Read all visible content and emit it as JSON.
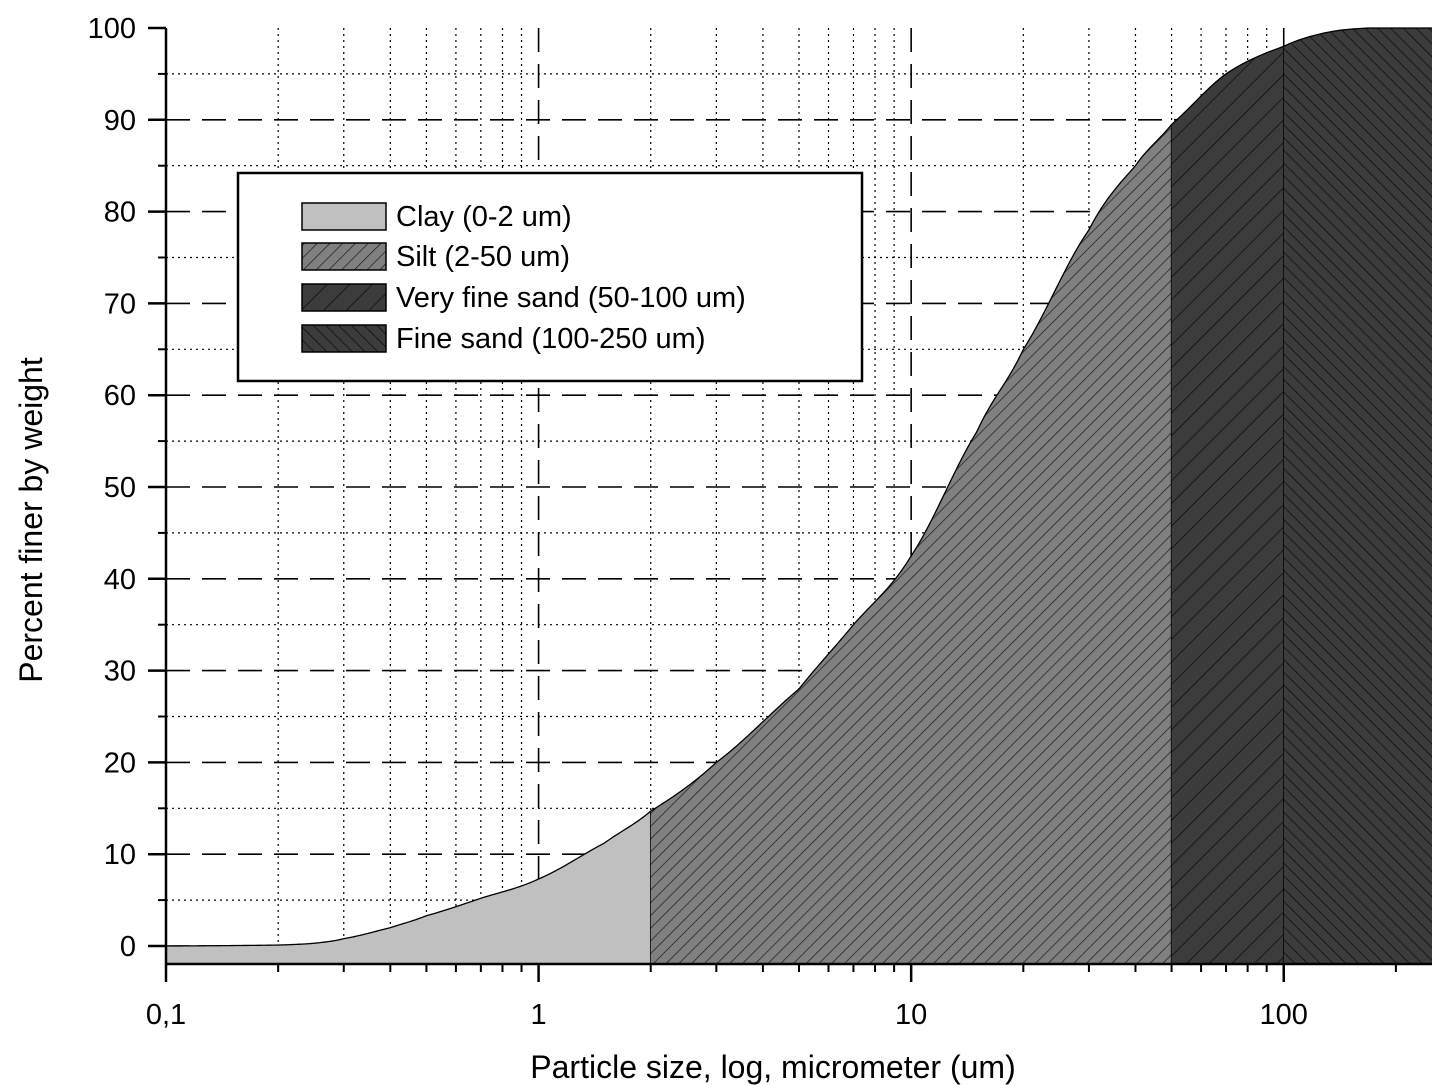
{
  "chart_data": {
    "type": "area",
    "xscale": "log",
    "xlabel": "Particle size, log, micrometer (um)",
    "ylabel": "Percent finer by weight",
    "xlim": [
      0.1,
      250
    ],
    "ylim": [
      -2,
      100
    ],
    "xticks": [
      {
        "value": 0.1,
        "label": "0,1"
      },
      {
        "value": 1,
        "label": "1"
      },
      {
        "value": 10,
        "label": "10"
      },
      {
        "value": 100,
        "label": "100"
      }
    ],
    "yticks": [
      {
        "value": 0,
        "label": "0"
      },
      {
        "value": 10,
        "label": "10"
      },
      {
        "value": 20,
        "label": "20"
      },
      {
        "value": 30,
        "label": "30"
      },
      {
        "value": 40,
        "label": "40"
      },
      {
        "value": 50,
        "label": "50"
      },
      {
        "value": 60,
        "label": "60"
      },
      {
        "value": 70,
        "label": "70"
      },
      {
        "value": 80,
        "label": "80"
      },
      {
        "value": 90,
        "label": "90"
      },
      {
        "value": 100,
        "label": "100"
      }
    ],
    "grid": true,
    "legend_position": "top-left",
    "curve": {
      "x": [
        0.1,
        0.2,
        0.25,
        0.3,
        0.4,
        0.5,
        0.7,
        1,
        1.5,
        2,
        3,
        5,
        7,
        10,
        15,
        20,
        30,
        40,
        50,
        70,
        100,
        130,
        170,
        250
      ],
      "y": [
        0,
        0.1,
        0.3,
        0.8,
        2,
        3.3,
        5.2,
        7.3,
        11.2,
        14.7,
        20,
        28,
        35,
        42.5,
        56,
        65,
        78,
        85,
        89.5,
        95,
        98,
        99.5,
        100,
        100
      ]
    },
    "series": [
      {
        "name": "Clay (0-2 um)",
        "range": [
          0.1,
          2
        ],
        "fill": "#c0c0c0",
        "pattern": "solid"
      },
      {
        "name": "Silt (2-50 um)",
        "range": [
          2,
          50
        ],
        "fill": "#808080",
        "pattern": "diagonal-forward"
      },
      {
        "name": "Very fine sand (50-100 um)",
        "range": [
          50,
          100
        ],
        "fill": "#3c3c3c",
        "pattern": "diagonal-forward-wide"
      },
      {
        "name": "Fine sand (100-250 um)",
        "range": [
          100,
          250
        ],
        "fill": "#3c3c3c",
        "pattern": "diagonal-back"
      }
    ]
  }
}
